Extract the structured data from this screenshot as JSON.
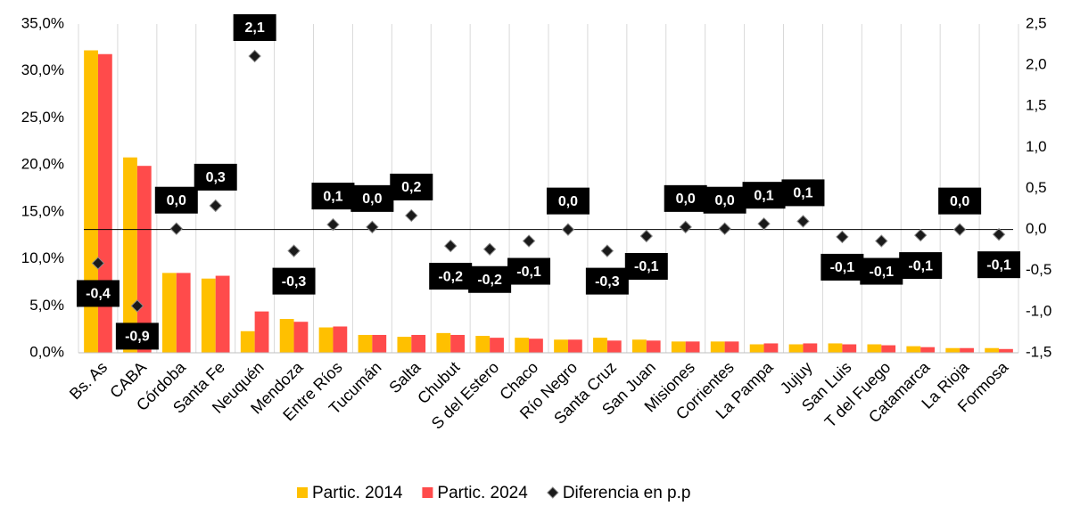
{
  "chart_data": {
    "type": "bar",
    "categories": [
      "Bs. As",
      "CABA",
      "Córdoba",
      "Santa Fe",
      "Neuquén",
      "Mendoza",
      "Entre Ríos",
      "Tucumán",
      "Salta",
      "Chubut",
      "S del Estero",
      "Chaco",
      "Río Negro",
      "Santa Cruz",
      "San Juan",
      "Misiones",
      "Corrientes",
      "La Pampa",
      "Jujuy",
      "San Luis",
      "T del Fuego",
      "Catamarca",
      "La Rioja",
      "Formosa"
    ],
    "series": [
      {
        "name": "Partic. 2014",
        "color": "#FFC000",
        "values": [
          32.2,
          20.8,
          8.5,
          7.9,
          2.3,
          3.6,
          2.7,
          1.9,
          1.7,
          2.1,
          1.8,
          1.6,
          1.4,
          1.6,
          1.4,
          1.2,
          1.2,
          0.9,
          0.9,
          1.0,
          0.9,
          0.7,
          0.5,
          0.5
        ]
      },
      {
        "name": "Partic. 2024",
        "color": "#FF4B4B",
        "values": [
          31.8,
          19.9,
          8.5,
          8.2,
          4.4,
          3.3,
          2.8,
          1.9,
          1.9,
          1.9,
          1.6,
          1.5,
          1.4,
          1.3,
          1.3,
          1.2,
          1.2,
          1.0,
          1.0,
          0.9,
          0.8,
          0.6,
          0.5,
          0.4
        ]
      },
      {
        "name": "Diferencia en p.p",
        "color": "#1a1a1a",
        "type": "scatter",
        "axis": "y2",
        "values": [
          -0.41,
          -0.93,
          0.01,
          0.29,
          2.11,
          -0.26,
          0.06,
          0.03,
          0.17,
          -0.2,
          -0.24,
          -0.14,
          0.0,
          -0.26,
          -0.08,
          0.03,
          0.01,
          0.07,
          0.1,
          -0.09,
          -0.14,
          -0.07,
          0.0,
          -0.06
        ],
        "value_labels": [
          "-0,4",
          "-0,9",
          "0,0",
          "0,3",
          "2,1",
          "-0,3",
          "0,1",
          "0,0",
          "0,2",
          "-0,2",
          "-0,2",
          "-0,1",
          "0,0",
          "-0,3",
          "-0,1",
          "0,0",
          "0,0",
          "0,1",
          "0,1",
          "-0,1",
          "-0,1",
          "-0,1",
          "0,0",
          "-0,1"
        ]
      }
    ],
    "ylim": [
      0,
      35
    ],
    "yticks": [
      {
        "value": 0,
        "label": "0,0%"
      },
      {
        "value": 5,
        "label": "5,0%"
      },
      {
        "value": 10,
        "label": "10,0%"
      },
      {
        "value": 15,
        "label": "15,0%"
      },
      {
        "value": 20,
        "label": "20,0%"
      },
      {
        "value": 25,
        "label": "25,0%"
      },
      {
        "value": 30,
        "label": "30,0%"
      },
      {
        "value": 35,
        "label": "35,0%"
      }
    ],
    "y2lim": [
      -1.5,
      2.5
    ],
    "y2ticks": [
      {
        "value": -1.5,
        "label": "-1,5"
      },
      {
        "value": -1,
        "label": "-1,0"
      },
      {
        "value": -0.5,
        "label": "-0,5"
      },
      {
        "value": 0,
        "label": "0,0"
      },
      {
        "value": 0.5,
        "label": "0,5"
      },
      {
        "value": 1,
        "label": "1,0"
      },
      {
        "value": 1.5,
        "label": "1,5"
      },
      {
        "value": 2,
        "label": "2,0"
      },
      {
        "value": 2.5,
        "label": "2,5"
      }
    ],
    "grid": true,
    "legend": "bottom"
  }
}
